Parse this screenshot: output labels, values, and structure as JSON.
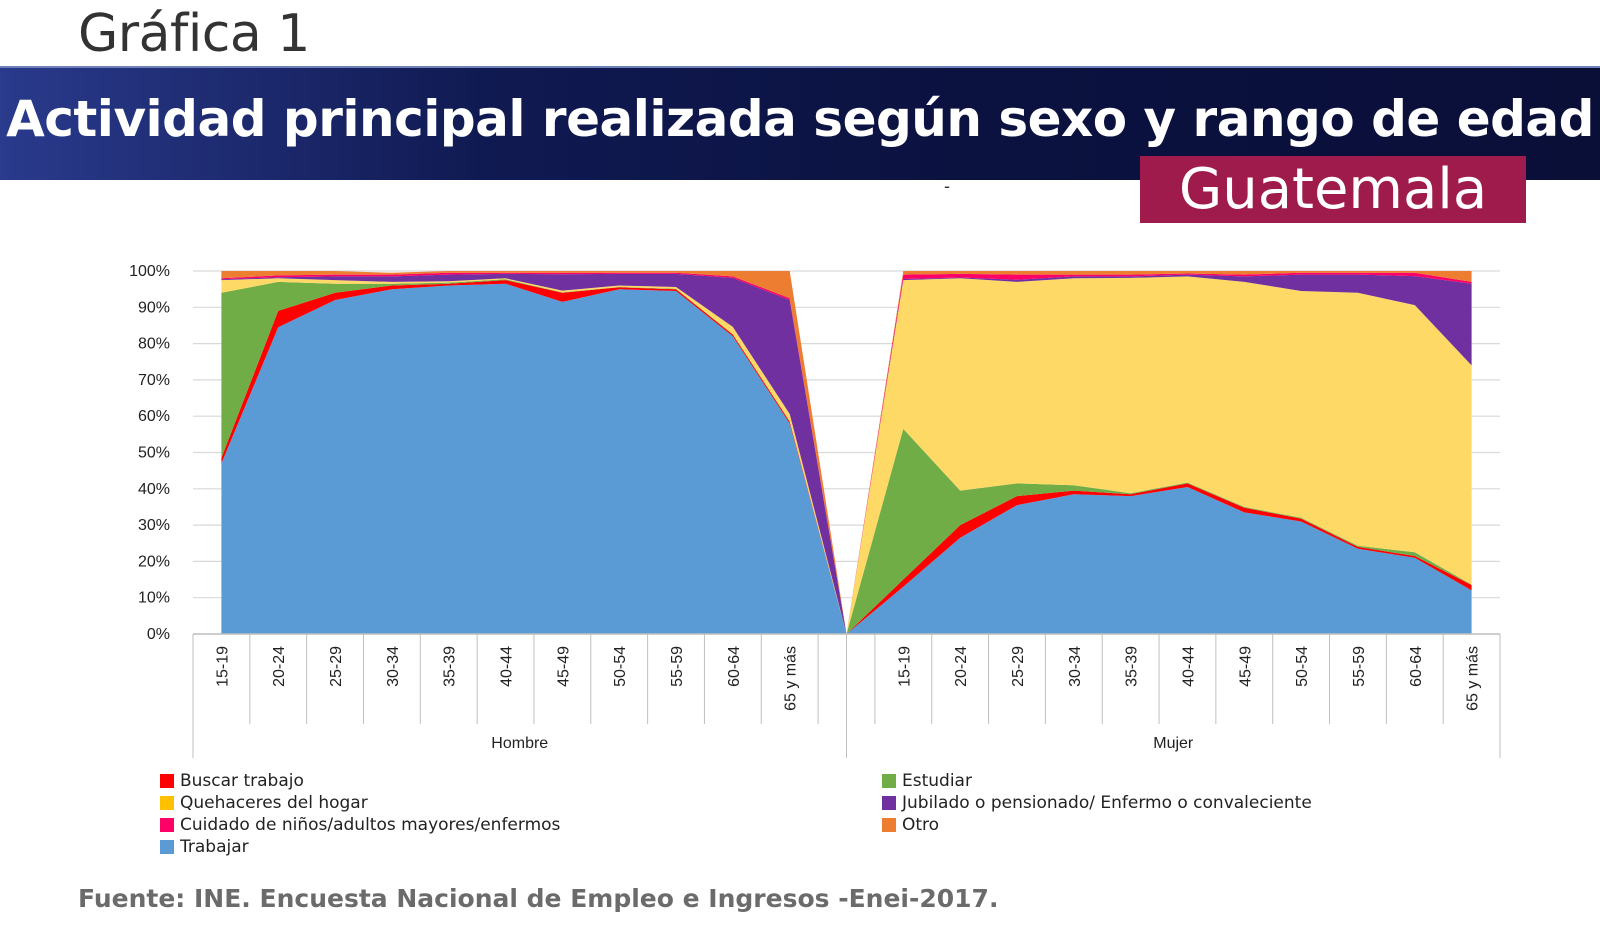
{
  "heading": "Gráfica 1",
  "title": "Actividad principal realizada según sexo y rango de edad",
  "country": "Guatemala",
  "dash": "-",
  "source": "Fuente: INE. Encuesta Nacional de Empleo e Ingresos -Enei-2017.",
  "colors": {
    "buscar": "#ff0000",
    "estudiar": "#70ad47",
    "quehaceres": "#ffd966",
    "jubilado": "#7030a0",
    "cuidado": "#ff0066",
    "otro": "#ed7d31",
    "trabajar": "#5b9bd5"
  },
  "chart_data": {
    "type": "area",
    "stacked": true,
    "ylim": [
      0,
      100
    ],
    "y_ticks": [
      "0%",
      "10%",
      "20%",
      "30%",
      "40%",
      "50%",
      "60%",
      "70%",
      "80%",
      "90%",
      "100%"
    ],
    "categories": [
      "15-19",
      "20-24",
      "25-29",
      "30-34",
      "35-39",
      "40-44",
      "45-49",
      "50-54",
      "55-59",
      "60-64",
      "65 y más"
    ],
    "groups": [
      "Hombre",
      "Mujer"
    ],
    "grid": true,
    "legend_position": "bottom",
    "legend": [
      {
        "key": "buscar",
        "label": "Buscar trabajo"
      },
      {
        "key": "estudiar",
        "label": "Estudiar"
      },
      {
        "key": "quehaceres",
        "label": "Quehaceres del hogar"
      },
      {
        "key": "jubilado",
        "label": "Jubilado o pensionado/ Enfermo o convaleciente"
      },
      {
        "key": "cuidado",
        "label": "Cuidado de niños/adultos  mayores/enfermos"
      },
      {
        "key": "otro",
        "label": "Otro"
      },
      {
        "key": "trabajar",
        "label": "Trabajar"
      }
    ],
    "series": {
      "Hombre": {
        "trabajar": [
          47,
          84.5,
          92,
          95,
          96,
          96.5,
          91.5,
          95,
          94.5,
          82,
          58
        ],
        "buscar": [
          1.5,
          4.5,
          2,
          1,
          0.5,
          1,
          2.5,
          0.5,
          0.5,
          0.5,
          0.5
        ],
        "estudiar": [
          45.5,
          8,
          2.5,
          0.5,
          0.3,
          0.2,
          0.1,
          0.1,
          0.1,
          0.1,
          0.1
        ],
        "quehaceres": [
          3.5,
          1,
          1,
          0.5,
          0.4,
          0.3,
          0.5,
          0.4,
          0.5,
          2,
          2
        ],
        "jubilado": [
          0.2,
          0.3,
          1,
          1.5,
          1.8,
          1.2,
          4.5,
          3.2,
          3.6,
          13.5,
          31.4
        ],
        "cuidado": [
          0.3,
          0.5,
          0.5,
          0.5,
          0.5,
          0.3,
          0.4,
          0.3,
          0.3,
          0.4,
          0.5
        ],
        "otro": [
          2,
          1.2,
          1,
          0.5,
          0.5,
          0.5,
          0.5,
          0.5,
          0.5,
          1.5,
          7.5
        ]
      },
      "Mujer": {
        "trabajar": [
          13,
          26.5,
          35.5,
          38.5,
          38,
          40.5,
          33.5,
          31,
          23.5,
          21,
          12
        ],
        "buscar": [
          2,
          3.5,
          2.5,
          1,
          0.5,
          1,
          1.3,
          0.8,
          0.5,
          0.5,
          1.5
        ],
        "estudiar": [
          41.5,
          9.5,
          3.5,
          1.5,
          0.3,
          0.2,
          0.2,
          0.2,
          0.3,
          1,
          0.1
        ],
        "quehaceres": [
          41,
          58.5,
          55.5,
          57,
          59.3,
          56.8,
          62,
          62.5,
          69.7,
          68.1,
          60.4
        ],
        "jubilado": [
          0.3,
          0.2,
          0.6,
          0.5,
          0.4,
          0.5,
          1.5,
          4.5,
          5,
          8,
          22.5
        ],
        "cuidado": [
          1.2,
          1,
          1.4,
          0.5,
          0.5,
          0.3,
          0.5,
          0.5,
          0.5,
          0.9,
          0.5
        ],
        "otro": [
          1,
          0.8,
          1,
          1,
          1,
          0.7,
          1,
          0.5,
          0.5,
          0.5,
          3
        ]
      }
    }
  }
}
